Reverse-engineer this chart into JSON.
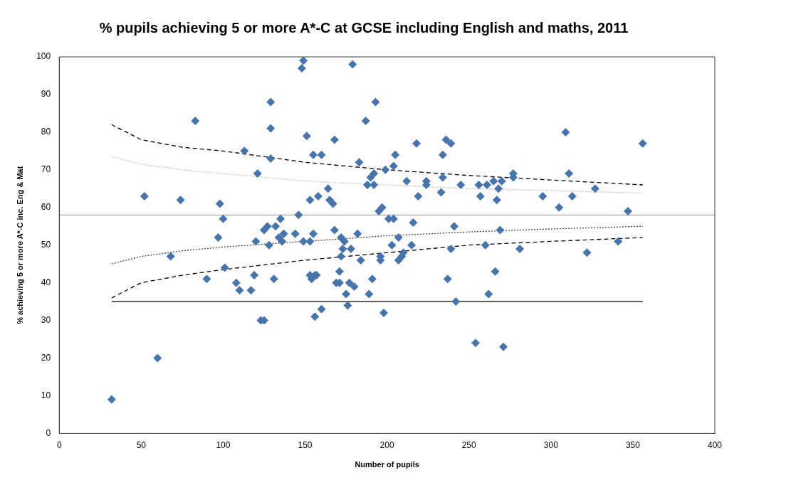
{
  "chart_data": {
    "type": "scatter",
    "title": "% pupils achieving 5 or more A*-C at GCSE including English and maths, 2011",
    "xlabel": "Number of pupils",
    "ylabel": "% achieving 5 or more A*-C inc. Eng & Mat",
    "xlim": [
      0,
      400
    ],
    "xticks": [
      0,
      50,
      100,
      150,
      200,
      250,
      300,
      350,
      400
    ],
    "ylim": [
      0,
      100
    ],
    "yticks": [
      0,
      10,
      20,
      30,
      40,
      50,
      60,
      70,
      80,
      90,
      100
    ],
    "grid": false,
    "legend": false,
    "ref_lines": [
      {
        "axis": "y",
        "value": 58,
        "color": "#a6a6a6",
        "line_style": "solid"
      }
    ],
    "series": [
      {
        "color": "#4674ad",
        "marker": "diamond",
        "x": [
          32,
          60,
          52,
          68,
          74,
          83,
          90,
          97,
          98,
          100,
          101,
          108,
          110,
          113,
          117,
          119,
          120,
          121,
          123,
          125,
          125,
          127,
          128,
          129,
          129,
          129,
          131,
          132,
          134,
          135,
          136,
          137,
          144,
          146,
          148,
          149,
          149,
          151,
          153,
          153,
          153,
          154,
          155,
          155,
          156,
          156,
          157,
          158,
          160,
          160,
          164,
          165,
          167,
          168,
          168,
          169,
          171,
          171,
          172,
          172,
          173,
          174,
          175,
          176,
          177,
          178,
          179,
          180,
          182,
          183,
          184,
          187,
          188,
          189,
          190,
          191,
          192,
          192,
          193,
          195,
          196,
          196,
          197,
          198,
          199,
          201,
          203,
          204,
          204,
          205,
          207,
          207,
          209,
          210,
          212,
          215,
          216,
          218,
          219,
          224,
          224,
          233,
          234,
          234,
          236,
          237,
          239,
          239,
          241,
          242,
          245,
          254,
          256,
          257,
          260,
          261,
          262,
          265,
          266,
          267,
          268,
          269,
          270,
          271,
          277,
          277,
          281,
          295,
          305,
          309,
          311,
          313,
          322,
          327,
          341,
          347,
          356
        ],
        "values": [
          9,
          20,
          63,
          47,
          62,
          83,
          41,
          52,
          61,
          57,
          44,
          40,
          38,
          75,
          38,
          42,
          51,
          69,
          30,
          30,
          54,
          55,
          50,
          88,
          81,
          73,
          41,
          55,
          52,
          57,
          51,
          53,
          53,
          58,
          97,
          99,
          51,
          79,
          42,
          51,
          62,
          41,
          74,
          53,
          42,
          31,
          42,
          63,
          74,
          33,
          65,
          62,
          61,
          54,
          78,
          40,
          40,
          43,
          47,
          52,
          49,
          51,
          37,
          34,
          40,
          49,
          98,
          39,
          53,
          72,
          46,
          83,
          66,
          37,
          68,
          41,
          69,
          66,
          88,
          59,
          47,
          46,
          60,
          32,
          70,
          57,
          50,
          71,
          57,
          74,
          46,
          52,
          47,
          48,
          67,
          50,
          56,
          77,
          63,
          66,
          67,
          64,
          68,
          74,
          78,
          41,
          49,
          77,
          55,
          35,
          66,
          24,
          66,
          63,
          50,
          66,
          37,
          67,
          43,
          62,
          65,
          54,
          67,
          23,
          68,
          69,
          49,
          63,
          60,
          80,
          69,
          63,
          48,
          65,
          51,
          59,
          77
        ]
      },
      {
        "type": "line",
        "color": "#000000",
        "line_style": "dashed",
        "marker": "none",
        "x": [
          32,
          50,
          75,
          100,
          150,
          200,
          250,
          300,
          356
        ],
        "values": [
          82,
          78,
          76,
          75,
          72,
          70,
          68.5,
          67.3,
          66
        ]
      },
      {
        "type": "line",
        "color": "#bfbfbf",
        "line_style": "dotted",
        "marker": "none",
        "x": [
          32,
          50,
          75,
          100,
          150,
          200,
          250,
          300,
          356
        ],
        "values": [
          73.5,
          71.5,
          70,
          69,
          67,
          66,
          65,
          64.5,
          63.8
        ]
      },
      {
        "type": "line",
        "color": "#404040",
        "line_style": "dotted",
        "marker": "none",
        "x": [
          32,
          50,
          75,
          100,
          150,
          200,
          250,
          300,
          356
        ],
        "values": [
          45,
          47,
          48.5,
          49.5,
          51,
          52.5,
          53.5,
          54.3,
          55
        ]
      },
      {
        "type": "line",
        "color": "#000000",
        "line_style": "dashed",
        "marker": "none",
        "x": [
          32,
          50,
          75,
          100,
          150,
          200,
          250,
          300,
          356
        ],
        "values": [
          36,
          40,
          42,
          43.5,
          46,
          48,
          50,
          51,
          52
        ]
      },
      {
        "type": "line",
        "color": "#000000",
        "line_style": "solid",
        "marker": "none",
        "x": [
          32,
          356
        ],
        "values": [
          35,
          35
        ]
      }
    ]
  }
}
